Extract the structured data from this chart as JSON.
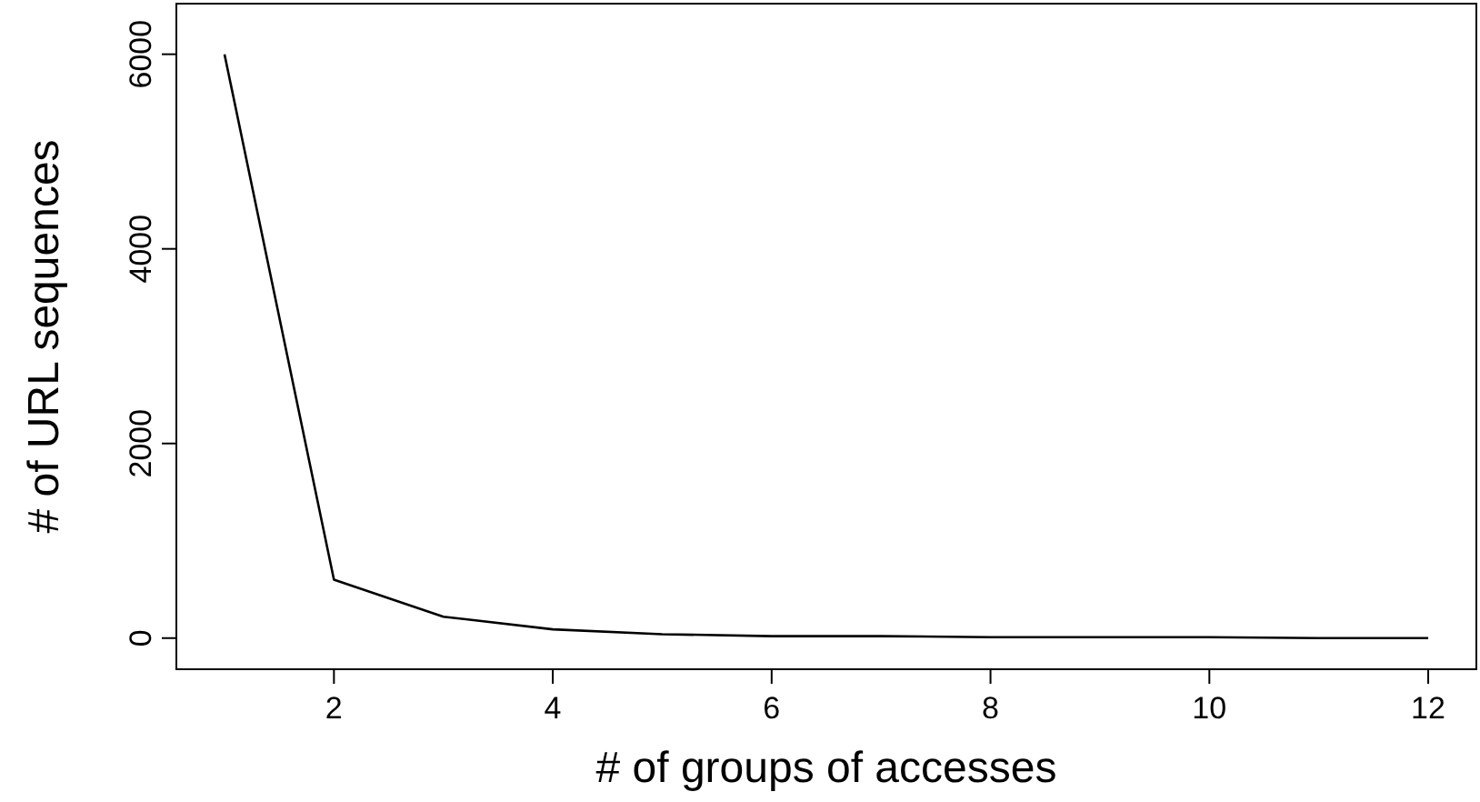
{
  "chart_data": {
    "type": "line",
    "xlabel": "# of groups of accesses",
    "ylabel": "# of URL sequences",
    "x": [
      1,
      2,
      3,
      4,
      5,
      6,
      7,
      8,
      9,
      10,
      11,
      12
    ],
    "series": [
      {
        "color": "#000000",
        "values": [
          6000,
          600,
          220,
          90,
          40,
          20,
          20,
          10,
          10,
          10,
          0,
          0
        ]
      }
    ],
    "xlim": [
      0.56,
      12.44
    ],
    "ylim": [
      -320,
      6520
    ],
    "xticks": [
      2,
      4,
      6,
      8,
      10,
      12
    ],
    "yticks": [
      0,
      2000,
      4000,
      6000
    ],
    "grid": false,
    "line_style": "solid"
  }
}
